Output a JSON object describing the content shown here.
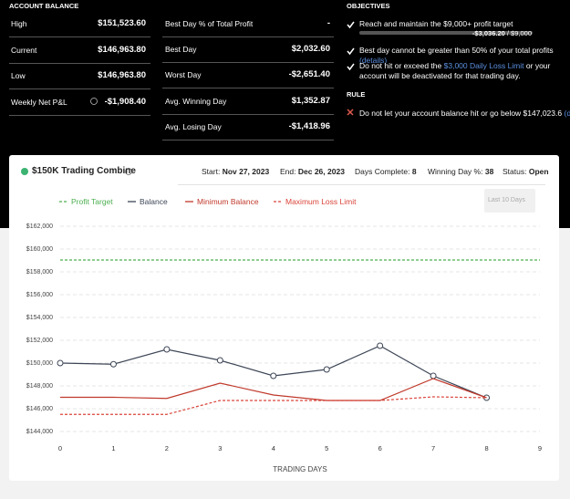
{
  "account_balance": {
    "title": "ACCOUNT BALANCE",
    "rows": [
      [
        "High",
        "$151,523.60"
      ],
      [
        "Current",
        "$146,963.80"
      ],
      [
        "Low",
        "$146,963.80"
      ],
      [
        "Weekly Net P&L",
        "-$1,908.40"
      ]
    ]
  },
  "stats": {
    "rows": [
      [
        "Best Day % of Total Profit",
        "-"
      ],
      [
        "Best Day",
        "$2,032.60"
      ],
      [
        "Worst Day",
        "-$2,651.40"
      ],
      [
        "Avg. Winning Day",
        "$1,352.87"
      ],
      [
        "Avg. Losing Day",
        "-$1,418.96"
      ]
    ]
  },
  "objectives": {
    "title": "OBJECTIVES",
    "items": [
      {
        "parts": [
          "Reach and maintain the $9,000+ profit target"
        ]
      },
      {
        "parts": [
          "Best day cannot be greater than 50% of your total profits",
          "(details)"
        ]
      },
      {
        "parts": [
          "Do not hit or exceed the",
          "$3,000 Daily Loss Limit",
          "or your account will be deactivated for that trading day."
        ]
      }
    ],
    "progress_value": "-$3,036.20",
    "progress_target": "/ $9,000"
  },
  "rule": {
    "title": "RULE",
    "parts": [
      "Do not let your account balance hit or go below $147,023.6",
      "(details)"
    ]
  },
  "card": {
    "title": "$150K Trading Combine",
    "meta": [
      {
        "label": "Start:",
        "value": "Nov 27, 2023"
      },
      {
        "label": "End:",
        "value": "Dec 26, 2023"
      },
      {
        "label": "Days Complete:",
        "value": "8"
      },
      {
        "label": "Winning Day %:",
        "value": "38"
      },
      {
        "label": "Status:",
        "value": "Open"
      }
    ],
    "dropdown": "Last 10 Days"
  },
  "chart_data": {
    "type": "line",
    "x_label": "TRADING DAYS",
    "x": [
      0,
      1,
      2,
      3,
      4,
      5,
      6,
      7,
      8,
      9
    ],
    "xlim": [
      0,
      9
    ],
    "xticks": [
      0,
      1,
      2,
      3,
      4,
      5,
      6,
      7,
      8,
      9
    ],
    "ylim": [
      144000,
      162000
    ],
    "yticks": [
      {
        "value": 144000,
        "label": "$144,000"
      },
      {
        "value": 146000,
        "label": "$146,000"
      },
      {
        "value": 148000,
        "label": "$148,000"
      },
      {
        "value": 150000,
        "label": "$150,000"
      },
      {
        "value": 152000,
        "label": "$152,000"
      },
      {
        "value": 154000,
        "label": "$154,000"
      },
      {
        "value": 156000,
        "label": "$156,000"
      },
      {
        "value": 158000,
        "label": "$158,000"
      },
      {
        "value": 160000,
        "label": "$160,000"
      },
      {
        "value": 162000,
        "label": "$162,000"
      }
    ],
    "grid": true,
    "series": [
      {
        "name": "Profit Target",
        "color": "#4caf50",
        "dashed": true,
        "markers": false,
        "values": [
          159040,
          159040,
          159040,
          159040,
          159040,
          159040,
          159040,
          159040,
          159040,
          159040
        ]
      },
      {
        "name": "Balance",
        "color": "#3d4656",
        "dashed": false,
        "markers": true,
        "values": [
          150000,
          149900,
          151200,
          150240,
          148880,
          149440,
          151520,
          148880,
          146960,
          null
        ]
      },
      {
        "name": "Minimum Balance",
        "color": "#c0392b",
        "dashed": false,
        "markers": false,
        "values": [
          147000,
          147000,
          146900,
          148240,
          147200,
          146720,
          146720,
          148640,
          146960,
          null
        ]
      },
      {
        "name": "Maximum Loss Limit",
        "color": "#d9443a",
        "dashed": true,
        "markers": false,
        "values": [
          145500,
          145500,
          145500,
          146720,
          146720,
          146720,
          146720,
          147040,
          146960,
          null
        ]
      }
    ]
  }
}
